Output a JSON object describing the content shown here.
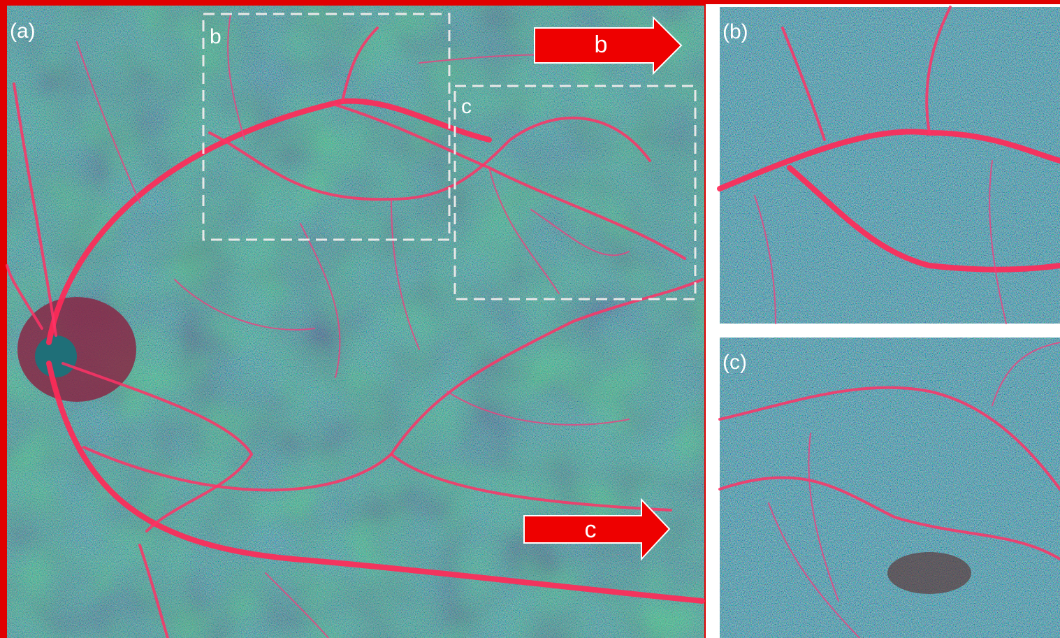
{
  "panels": [
    {
      "label": "(a)",
      "boxes": [
        {
          "label": "b"
        },
        {
          "label": "c"
        }
      ]
    },
    {
      "label": "(b)"
    },
    {
      "label": "(c)"
    }
  ],
  "arrows": [
    {
      "label": "b"
    },
    {
      "label": "c"
    }
  ]
}
